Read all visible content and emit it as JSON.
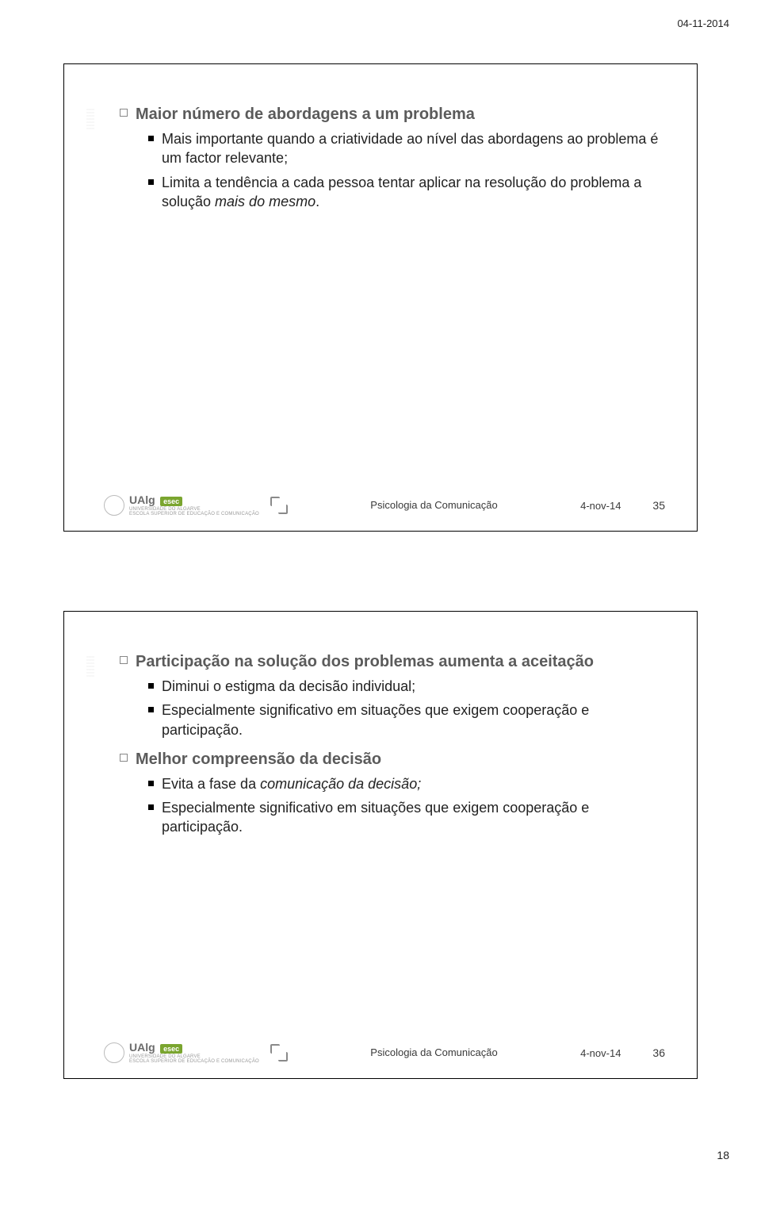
{
  "page": {
    "header_date": "04-11-2014",
    "page_number": "18"
  },
  "footer": {
    "brand_main": "UAlg",
    "brand_tag": "esec",
    "brand_sub1": "UNIVERSIDADE DO ALGARVE",
    "brand_sub2": "ESCOLA SUPERIOR DE EDUCAÇÃO E COMUNICAÇÃO",
    "course": "Psicologia da Comunicação",
    "date": "4-nov-14"
  },
  "slide1": {
    "number": "35",
    "item1_title": "Maior número de abordagens a um problema",
    "item1_sub1": "Mais importante quando a criatividade ao nível das abordagens ao problema é um factor relevante;",
    "item1_sub2_pre": "Limita a tendência a cada pessoa tentar aplicar na resolução do problema a solução ",
    "item1_sub2_em": "mais do mesmo",
    "item1_sub2_post": "."
  },
  "slide2": {
    "number": "36",
    "item1_title": "Participação na solução dos problemas aumenta a aceitação",
    "item1_sub1": "Diminui o estigma da decisão individual;",
    "item1_sub2": "Especialmente significativo em situações que exigem cooperação e participação.",
    "item2_title": "Melhor compreensão da decisão",
    "item2_sub1_pre": "Evita a fase da ",
    "item2_sub1_em": "comunicação da decisão;",
    "item2_sub2": "Especialmente significativo em situações que exigem cooperação e participação."
  }
}
